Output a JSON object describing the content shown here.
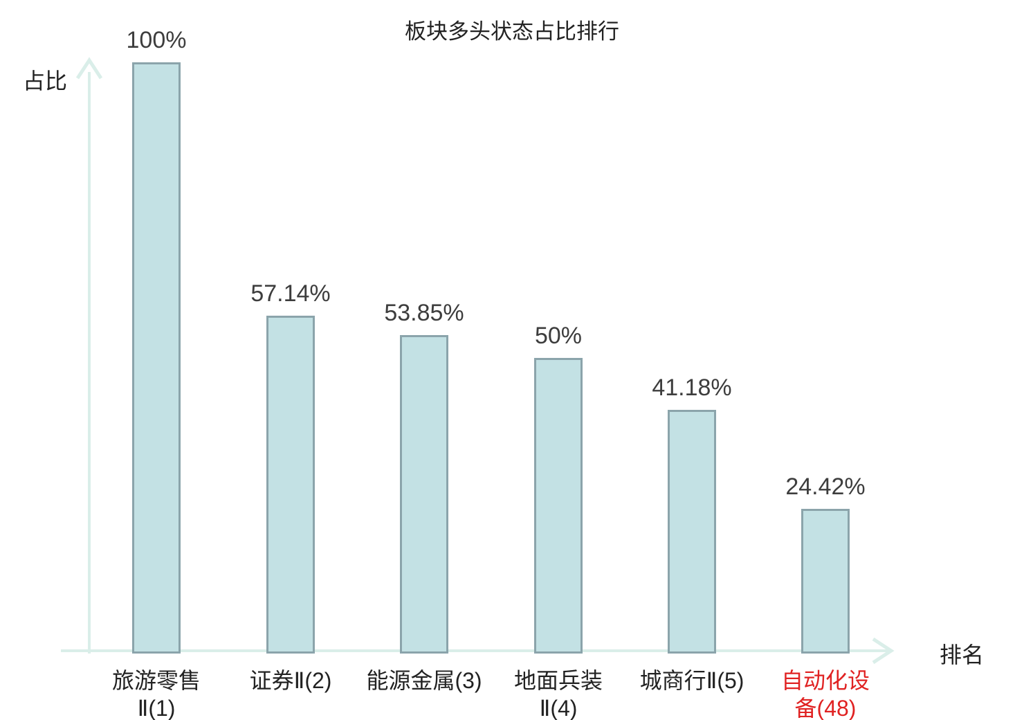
{
  "chart_data": {
    "type": "bar",
    "title": "板块多头状态占比排行",
    "xlabel": "排名",
    "ylabel": "占比",
    "ylim": [
      0,
      100
    ],
    "unit": "%",
    "grid": false,
    "legend": null,
    "axis_style": "arrow-axes-no-ticks",
    "categories": [
      "旅游零售Ⅱ(1)",
      "证券Ⅱ(2)",
      "能源金属(3)",
      "地面兵装Ⅱ(4)",
      "城商行Ⅱ(5)",
      "自动化设备(48)"
    ],
    "values": [
      100,
      57.14,
      53.85,
      50,
      41.18,
      24.42
    ],
    "bars": [
      {
        "category_display": "旅游零售\nⅡ(1)",
        "value": 100,
        "value_label": "100%",
        "highlighted": false
      },
      {
        "category_display": "证券Ⅱ(2)",
        "value": 57.14,
        "value_label": "57.14%",
        "highlighted": false
      },
      {
        "category_display": "能源金属(3)",
        "value": 53.85,
        "value_label": "53.85%",
        "highlighted": false
      },
      {
        "category_display": "地面兵装\nⅡ(4)",
        "value": 50,
        "value_label": "50%",
        "highlighted": false
      },
      {
        "category_display": "城商行Ⅱ(5)",
        "value": 41.18,
        "value_label": "41.18%",
        "highlighted": false
      },
      {
        "category_display": "自动化设\n备(48)",
        "value": 24.42,
        "value_label": "24.42%",
        "highlighted": true
      }
    ],
    "colors": {
      "bar_fill": "#c3e1e4",
      "bar_border": "#8ba4ab",
      "axis": "#daeee9",
      "text": "#222222",
      "value_text": "#3d3d3d",
      "highlight_text": "#e02222"
    }
  }
}
